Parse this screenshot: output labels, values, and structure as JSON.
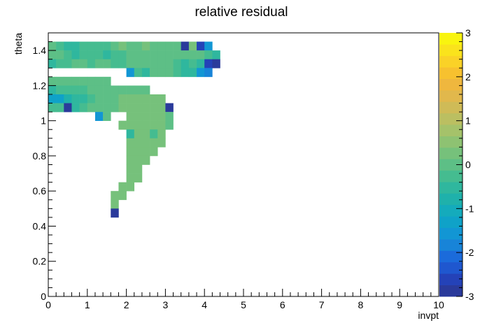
{
  "chart_data": {
    "type": "heatmap",
    "title": "relative residual",
    "xlabel": "invpt",
    "ylabel": "theta",
    "xlim": [
      0,
      10
    ],
    "ylim": [
      0,
      1.5
    ],
    "x_ticks": [
      "0",
      "1",
      "2",
      "3",
      "4",
      "5",
      "6",
      "7",
      "8",
      "9",
      "10"
    ],
    "y_ticks": [
      "0",
      "0.2",
      "0.4",
      "0.6",
      "0.8",
      "1",
      "1.2",
      "1.4"
    ],
    "bin_width_x": 0.2,
    "bin_width_y": 0.05,
    "zlim": [
      -3,
      3
    ],
    "colorbar_ticks": [
      "-3",
      "-2",
      "-1",
      "0",
      "1",
      "2",
      "3"
    ],
    "colorbar_colors": [
      "#2a3a9b",
      "#2442b8",
      "#1f57cf",
      "#1b6bdb",
      "#1884d8",
      "#1296d4",
      "#0fa2c8",
      "#14abbc",
      "#1fb1ab",
      "#2fb79e",
      "#45bc90",
      "#5dbf86",
      "#76c17b",
      "#8ec272",
      "#a5c26a",
      "#bbbf61",
      "#cfbb57",
      "#e1b84c",
      "#efb73e",
      "#f7c12f",
      "#fad227",
      "#fae31c",
      "#f9f40f"
    ],
    "cells": [
      [
        0.0,
        1.4,
        0.0
      ],
      [
        0.2,
        1.4,
        -0.3
      ],
      [
        0.4,
        1.4,
        -0.5
      ],
      [
        0.6,
        1.4,
        -0.4
      ],
      [
        0.8,
        1.4,
        -0.3
      ],
      [
        1.0,
        1.4,
        -0.3
      ],
      [
        1.2,
        1.4,
        -0.2
      ],
      [
        1.4,
        1.4,
        -0.2
      ],
      [
        1.6,
        1.4,
        0.0
      ],
      [
        1.8,
        1.4,
        0.2
      ],
      [
        2.0,
        1.4,
        0.0
      ],
      [
        2.2,
        1.4,
        0.1
      ],
      [
        2.4,
        1.4,
        0.2
      ],
      [
        2.6,
        1.4,
        0.0
      ],
      [
        2.8,
        1.4,
        0.1
      ],
      [
        3.0,
        1.4,
        0.1
      ],
      [
        3.2,
        1.4,
        0.0
      ],
      [
        3.4,
        1.4,
        -2.8
      ],
      [
        3.6,
        1.4,
        0.2
      ],
      [
        3.8,
        1.4,
        -2.7
      ],
      [
        4.0,
        1.4,
        -1.5
      ],
      [
        0.0,
        1.35,
        -0.1
      ],
      [
        0.2,
        1.35,
        0.0
      ],
      [
        0.4,
        1.35,
        -0.2
      ],
      [
        0.6,
        1.35,
        -0.4
      ],
      [
        0.8,
        1.35,
        -0.3
      ],
      [
        1.0,
        1.35,
        -0.3
      ],
      [
        1.2,
        1.35,
        -0.3
      ],
      [
        1.4,
        1.35,
        -0.4
      ],
      [
        1.6,
        1.35,
        -0.3
      ],
      [
        1.8,
        1.35,
        -0.2
      ],
      [
        2.0,
        1.35,
        -0.1
      ],
      [
        2.2,
        1.35,
        -0.1
      ],
      [
        2.4,
        1.35,
        -0.1
      ],
      [
        2.6,
        1.35,
        0.0
      ],
      [
        2.8,
        1.35,
        0.0
      ],
      [
        3.0,
        1.35,
        0.0
      ],
      [
        3.2,
        1.35,
        0.1
      ],
      [
        3.4,
        1.35,
        0.1
      ],
      [
        3.6,
        1.35,
        0.1
      ],
      [
        3.8,
        1.35,
        0.0
      ],
      [
        4.0,
        1.35,
        -0.3
      ],
      [
        4.2,
        1.35,
        -0.5
      ],
      [
        0.0,
        1.3,
        -0.4
      ],
      [
        0.2,
        1.3,
        -0.3
      ],
      [
        0.4,
        1.3,
        -0.3
      ],
      [
        0.6,
        1.3,
        -0.1
      ],
      [
        0.8,
        1.3,
        -0.1
      ],
      [
        1.0,
        1.3,
        -0.2
      ],
      [
        1.2,
        1.3,
        -0.1
      ],
      [
        1.4,
        1.3,
        0.0
      ],
      [
        1.6,
        1.3,
        -0.3
      ],
      [
        1.8,
        1.3,
        -0.2
      ],
      [
        2.0,
        1.3,
        -0.1
      ],
      [
        2.2,
        1.3,
        -0.1
      ],
      [
        2.4,
        1.3,
        0.0
      ],
      [
        2.6,
        1.3,
        0.0
      ],
      [
        2.8,
        1.3,
        -0.1
      ],
      [
        3.0,
        1.3,
        -0.1
      ],
      [
        3.2,
        1.3,
        -0.2
      ],
      [
        3.4,
        1.3,
        -0.4
      ],
      [
        3.6,
        1.3,
        -0.3
      ],
      [
        3.8,
        1.3,
        -0.5
      ],
      [
        4.0,
        1.3,
        -2.5
      ],
      [
        4.2,
        1.3,
        -2.9
      ],
      [
        2.0,
        1.25,
        -1.5
      ],
      [
        2.2,
        1.25,
        -0.3
      ],
      [
        2.4,
        1.25,
        -0.4
      ],
      [
        2.6,
        1.25,
        0.0
      ],
      [
        2.8,
        1.25,
        0.0
      ],
      [
        3.0,
        1.25,
        0.0
      ],
      [
        3.2,
        1.25,
        -0.2
      ],
      [
        3.4,
        1.25,
        -0.5
      ],
      [
        3.6,
        1.25,
        -0.4
      ],
      [
        3.8,
        1.25,
        -1.5
      ],
      [
        4.0,
        1.25,
        -1.7
      ],
      [
        0.0,
        1.2,
        -0.1
      ],
      [
        0.2,
        1.2,
        0.0
      ],
      [
        0.4,
        1.2,
        0.0
      ],
      [
        0.6,
        1.2,
        0.0
      ],
      [
        0.8,
        1.2,
        0.0
      ],
      [
        1.0,
        1.2,
        0.0
      ],
      [
        1.2,
        1.2,
        0.1
      ],
      [
        1.4,
        1.2,
        0.1
      ],
      [
        0.0,
        1.15,
        -0.5
      ],
      [
        0.2,
        1.15,
        -0.3
      ],
      [
        0.4,
        1.15,
        -0.3
      ],
      [
        0.6,
        1.15,
        -0.2
      ],
      [
        0.8,
        1.15,
        -0.2
      ],
      [
        1.0,
        1.15,
        -0.1
      ],
      [
        1.2,
        1.15,
        -0.1
      ],
      [
        1.4,
        1.15,
        0.0
      ],
      [
        1.6,
        1.15,
        0.0
      ],
      [
        1.8,
        1.15,
        0.0
      ],
      [
        2.0,
        1.15,
        0.1
      ],
      [
        2.2,
        1.15,
        0.1
      ],
      [
        2.4,
        1.15,
        0.1
      ],
      [
        0.0,
        1.1,
        -1.2
      ],
      [
        0.2,
        1.1,
        -1.4
      ],
      [
        0.4,
        1.1,
        -0.8
      ],
      [
        0.6,
        1.1,
        -0.6
      ],
      [
        0.8,
        1.1,
        -0.4
      ],
      [
        1.0,
        1.1,
        -0.2
      ],
      [
        1.2,
        1.1,
        -0.1
      ],
      [
        1.4,
        1.1,
        0.0
      ],
      [
        1.6,
        1.1,
        0.0
      ],
      [
        1.8,
        1.1,
        0.2
      ],
      [
        2.0,
        1.1,
        0.2
      ],
      [
        2.2,
        1.1,
        0.3
      ],
      [
        2.4,
        1.1,
        0.3
      ],
      [
        2.6,
        1.1,
        0.3
      ],
      [
        2.8,
        1.1,
        0.3
      ],
      [
        0.0,
        1.05,
        -0.2
      ],
      [
        0.2,
        1.05,
        -0.3
      ],
      [
        0.4,
        1.05,
        -2.8
      ],
      [
        0.6,
        1.05,
        -0.4
      ],
      [
        0.8,
        1.05,
        -0.3
      ],
      [
        1.0,
        1.05,
        -0.1
      ],
      [
        1.2,
        1.05,
        0.0
      ],
      [
        1.4,
        1.05,
        0.1
      ],
      [
        1.6,
        1.05,
        0.0
      ],
      [
        1.8,
        1.05,
        0.2
      ],
      [
        2.0,
        1.05,
        0.3
      ],
      [
        2.2,
        1.05,
        0.3
      ],
      [
        2.4,
        1.05,
        0.3
      ],
      [
        2.6,
        1.05,
        0.3
      ],
      [
        2.8,
        1.05,
        0.3
      ],
      [
        3.0,
        1.05,
        -2.9
      ],
      [
        1.2,
        1.0,
        -1.6
      ],
      [
        1.4,
        1.0,
        0.0
      ],
      [
        2.0,
        1.0,
        0.2
      ],
      [
        2.2,
        1.0,
        0.3
      ],
      [
        2.4,
        1.0,
        0.3
      ],
      [
        2.6,
        1.0,
        0.2
      ],
      [
        2.8,
        1.0,
        0.3
      ],
      [
        3.0,
        1.0,
        0.0
      ],
      [
        1.8,
        0.95,
        0.3
      ],
      [
        2.0,
        0.95,
        0.3
      ],
      [
        2.2,
        0.95,
        0.2
      ],
      [
        2.4,
        0.95,
        0.3
      ],
      [
        2.6,
        0.95,
        0.2
      ],
      [
        2.8,
        0.95,
        0.3
      ],
      [
        3.0,
        0.95,
        -0.1
      ],
      [
        2.0,
        0.9,
        -0.4
      ],
      [
        2.2,
        0.9,
        0.2
      ],
      [
        2.4,
        0.9,
        0.3
      ],
      [
        2.6,
        0.9,
        -0.2
      ],
      [
        2.8,
        0.9,
        0.3
      ],
      [
        2.0,
        0.85,
        0.2
      ],
      [
        2.2,
        0.85,
        0.3
      ],
      [
        2.4,
        0.85,
        0.3
      ],
      [
        2.6,
        0.85,
        0.3
      ],
      [
        2.8,
        0.85,
        0.3
      ],
      [
        2.0,
        0.8,
        0.3
      ],
      [
        2.2,
        0.8,
        0.3
      ],
      [
        2.4,
        0.8,
        0.3
      ],
      [
        2.6,
        0.8,
        0.3
      ],
      [
        2.0,
        0.75,
        0.3
      ],
      [
        2.2,
        0.75,
        0.3
      ],
      [
        2.4,
        0.75,
        0.3
      ],
      [
        2.0,
        0.7,
        0.3
      ],
      [
        2.2,
        0.7,
        0.3
      ],
      [
        2.0,
        0.65,
        0.3
      ],
      [
        2.2,
        0.65,
        0.3
      ],
      [
        1.8,
        0.6,
        0.3
      ],
      [
        2.0,
        0.6,
        0.3
      ],
      [
        1.6,
        0.55,
        0.3
      ],
      [
        1.8,
        0.55,
        0.3
      ],
      [
        1.6,
        0.5,
        0.3
      ],
      [
        1.6,
        0.45,
        -2.9
      ]
    ]
  }
}
